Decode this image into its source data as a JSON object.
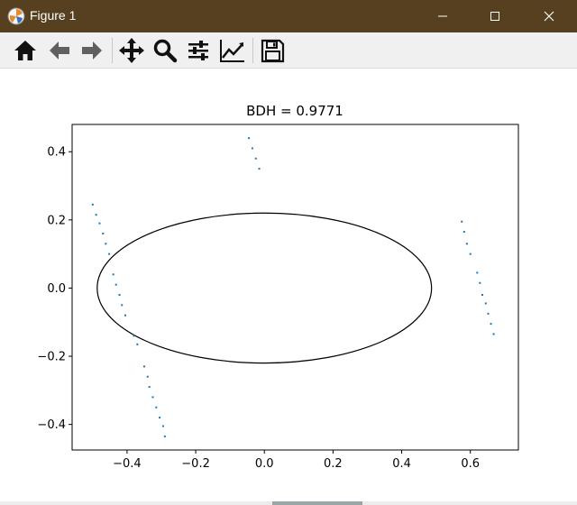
{
  "window": {
    "title": "Figure 1"
  },
  "toolbar": {
    "buttons": [
      {
        "name": "home-button",
        "icon": "home-icon"
      },
      {
        "name": "back-button",
        "icon": "arrow-left-icon"
      },
      {
        "name": "forward-button",
        "icon": "arrow-right-icon"
      },
      {
        "name": "pan-button",
        "icon": "move-icon"
      },
      {
        "name": "zoom-button",
        "icon": "magnifier-icon"
      },
      {
        "name": "subplots-button",
        "icon": "sliders-icon"
      },
      {
        "name": "axes-edit-button",
        "icon": "line-chart-icon"
      },
      {
        "name": "save-button",
        "icon": "floppy-disk-icon"
      }
    ]
  },
  "colors": {
    "titlebar": "#56401f",
    "points": "#1f77b4",
    "ellipse": "#000000"
  },
  "chart_data": {
    "type": "scatter",
    "title": "BDH = 0.9771",
    "xlabel": "",
    "ylabel": "",
    "xlim": [
      -0.56,
      0.74
    ],
    "ylim": [
      -0.475,
      0.48
    ],
    "xticks": [
      -0.4,
      -0.2,
      0.0,
      0.2,
      0.4,
      0.6
    ],
    "xtick_labels": [
      "−0.4",
      "−0.2",
      "0.0",
      "0.2",
      "0.4",
      "0.6"
    ],
    "yticks": [
      -0.4,
      -0.2,
      0.0,
      0.2,
      0.4
    ],
    "ytick_labels": [
      "−0.4",
      "−0.2",
      "0.0",
      "0.2",
      "0.4"
    ],
    "grid": false,
    "ellipse": {
      "cx": 0.0,
      "cy": 0.0,
      "rx": 0.487,
      "ry": 0.22
    },
    "series": [
      {
        "values": [
          [
            -0.5,
            0.245
          ],
          [
            -0.49,
            0.215
          ],
          [
            -0.48,
            0.19
          ],
          [
            -0.47,
            0.16
          ],
          [
            -0.462,
            0.13
          ],
          [
            -0.452,
            0.1
          ],
          [
            -0.44,
            0.04
          ],
          [
            -0.432,
            0.01
          ],
          [
            -0.422,
            -0.02
          ],
          [
            -0.415,
            -0.05
          ],
          [
            -0.405,
            -0.08
          ],
          [
            -0.38,
            -0.14
          ],
          [
            -0.37,
            -0.165
          ],
          [
            -0.35,
            -0.23
          ],
          [
            -0.34,
            -0.26
          ],
          [
            -0.335,
            -0.29
          ],
          [
            -0.325,
            -0.32
          ],
          [
            -0.315,
            -0.35
          ],
          [
            -0.305,
            -0.38
          ],
          [
            -0.295,
            -0.405
          ],
          [
            -0.29,
            -0.435
          ],
          [
            -0.045,
            0.44
          ],
          [
            -0.035,
            0.41
          ],
          [
            -0.025,
            0.38
          ],
          [
            -0.015,
            0.35
          ],
          [
            0.575,
            0.195
          ],
          [
            0.582,
            0.165
          ],
          [
            0.59,
            0.13
          ],
          [
            0.6,
            0.1
          ],
          [
            0.62,
            0.045
          ],
          [
            0.628,
            0.015
          ],
          [
            0.635,
            -0.02
          ],
          [
            0.645,
            -0.045
          ],
          [
            0.652,
            -0.075
          ],
          [
            0.66,
            -0.105
          ],
          [
            0.668,
            -0.135
          ]
        ]
      }
    ]
  }
}
